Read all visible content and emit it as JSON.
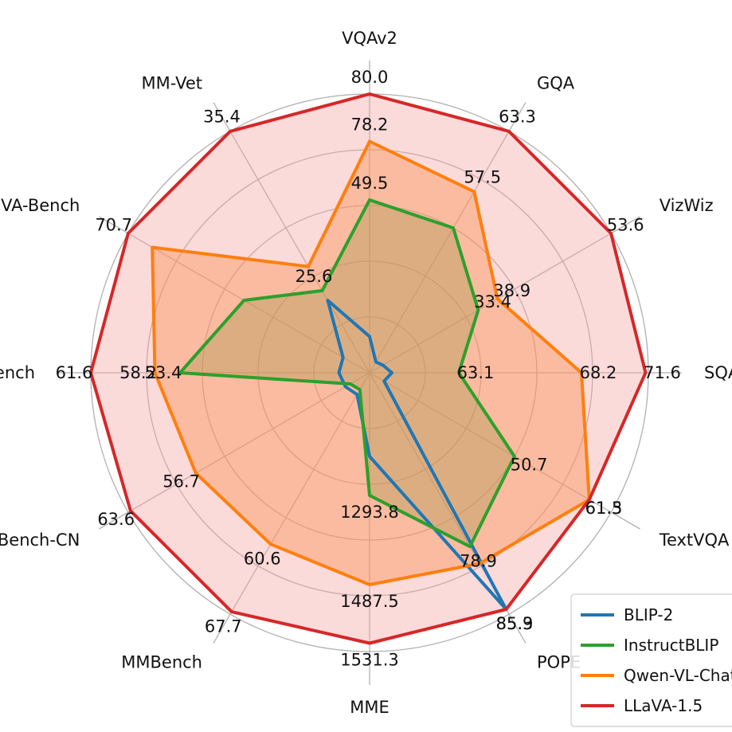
{
  "chart_data": {
    "type": "radar",
    "axes": [
      "VQAv2",
      "GQA",
      "VizWiz",
      "SQA-IMG",
      "TextVQA",
      "POPE",
      "MME",
      "MMBench",
      "MMBench-CN",
      "SEED-Bench",
      "LLaVA-Bench",
      "MM-Vet"
    ],
    "rmax": 1.0,
    "rings": [
      0.2,
      0.4,
      0.6,
      0.8,
      1.0
    ],
    "grid": true,
    "legend_position": "bottom-right",
    "series": [
      {
        "name": "BLIP-2",
        "color": "#1f77b4",
        "fill": "none",
        "r": [
          0.13,
          0.045,
          0.055,
          0.08,
          0.06,
          0.98,
          0.3,
          0.09,
          0.1,
          0.11,
          0.11,
          0.3
        ]
      },
      {
        "name": "InstructBLIP",
        "color": "#2ca02c",
        "fill": "#2ca02c",
        "r": [
          0.62,
          0.6,
          0.45,
          0.32,
          0.6,
          0.72,
          0.44,
          0.07,
          0.08,
          0.68,
          0.52,
          0.34
        ],
        "labels": [
          {
            "i": 0,
            "text": "49.5"
          },
          {
            "i": 2,
            "text": "33.4"
          },
          {
            "i": 3,
            "text": "63.1"
          },
          {
            "i": 4,
            "text": "50.7"
          },
          {
            "i": 5,
            "text": "78.9"
          },
          {
            "i": 6,
            "text": "1293.8"
          },
          {
            "i": 9,
            "text": "53.4"
          },
          {
            "i": 11,
            "text": "25.6"
          }
        ]
      },
      {
        "name": "Qwen-VL-Chat",
        "color": "#ff7f0e",
        "fill": "#ff7f0e",
        "r": [
          0.83,
          0.75,
          0.53,
          0.76,
          0.91,
          0.79,
          0.76,
          0.71,
          0.72,
          0.77,
          0.9,
          0.44
        ],
        "labels": [
          {
            "i": 0,
            "text": "78.2"
          },
          {
            "i": 1,
            "text": "57.5"
          },
          {
            "i": 2,
            "text": "38.9"
          },
          {
            "i": 3,
            "text": "68.2"
          },
          {
            "i": 4,
            "text": "61.5"
          },
          {
            "i": 6,
            "text": "1487.5"
          },
          {
            "i": 7,
            "text": "60.6"
          },
          {
            "i": 8,
            "text": "56.7"
          },
          {
            "i": 9,
            "text": "58.2"
          }
        ]
      },
      {
        "name": "LLaVA-1.5",
        "color": "#d62728",
        "fill": "#f5a3a3",
        "r": [
          1.0,
          1.0,
          1.0,
          0.99,
          0.91,
          0.98,
          0.97,
          0.99,
          0.99,
          1.0,
          1.0,
          1.0
        ],
        "labels": [
          {
            "i": 0,
            "text": "80.0"
          },
          {
            "i": 1,
            "text": "63.3"
          },
          {
            "i": 2,
            "text": "53.6"
          },
          {
            "i": 3,
            "text": "71.6"
          },
          {
            "i": 4,
            "text": "61.3"
          },
          {
            "i": 5,
            "text": "85.9"
          },
          {
            "i": 6,
            "text": "1531.3"
          },
          {
            "i": 7,
            "text": "67.7"
          },
          {
            "i": 8,
            "text": "63.6"
          },
          {
            "i": 9,
            "text": "61.6"
          },
          {
            "i": 10,
            "text": "70.7"
          },
          {
            "i": 11,
            "text": "35.4"
          }
        ]
      }
    ],
    "extra_labels": [
      {
        "series": "BLIP-2",
        "i": 5,
        "text": "85.3"
      }
    ]
  }
}
